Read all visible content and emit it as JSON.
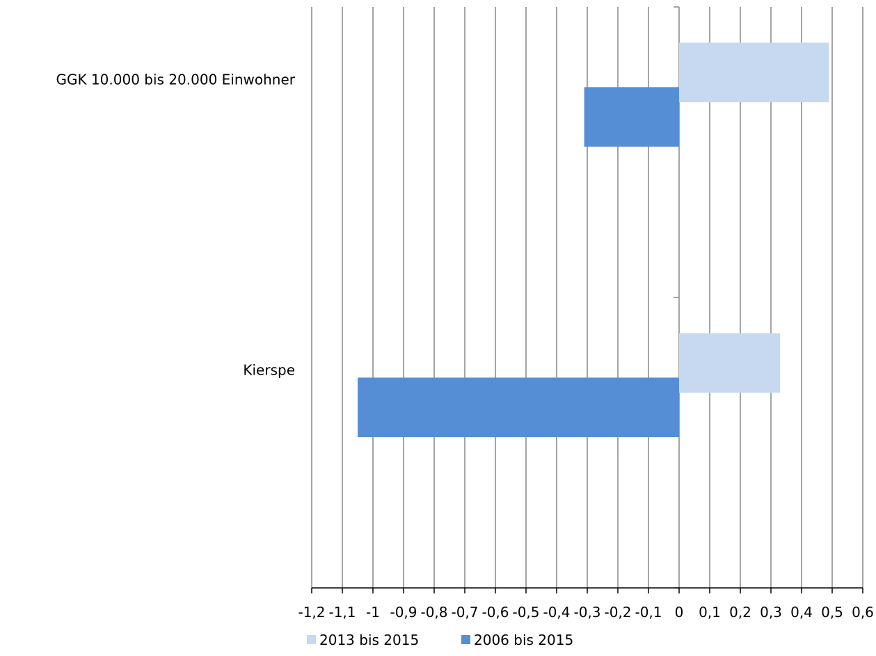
{
  "chart_data": {
    "type": "bar",
    "orientation": "horizontal",
    "categories": [
      "GGK 10.000 bis 20.000 Einwohner",
      "Kierspe"
    ],
    "series": [
      {
        "name": "2013 bis 2015",
        "values": [
          0.49,
          0.33
        ],
        "color": "#c6d9f1"
      },
      {
        "name": "2006 bis 2015",
        "values": [
          -0.31,
          -1.05
        ],
        "color": "#558ed5"
      }
    ],
    "xlim": [
      -1.2,
      0.6
    ],
    "xticks": [
      -1.2,
      -1.1,
      -1,
      -0.9,
      -0.8,
      -0.7,
      -0.6,
      -0.5,
      -0.4,
      -0.3,
      -0.2,
      -0.1,
      0,
      0.1,
      0.2,
      0.3,
      0.4,
      0.5,
      0.6
    ],
    "xtick_labels": [
      "-1,2",
      "-1,1",
      "-1",
      "-0,9",
      "-0,8",
      "-0,7",
      "-0,6",
      "-0,5",
      "-0,4",
      "-0,3",
      "-0,2",
      "-0,1",
      "0",
      "0,1",
      "0,2",
      "0,3",
      "0,4",
      "0,5",
      "0,6"
    ],
    "grid": true,
    "legend_position": "bottom",
    "title": "",
    "xlabel": "",
    "ylabel": "",
    "gridline_color": "#868686"
  }
}
